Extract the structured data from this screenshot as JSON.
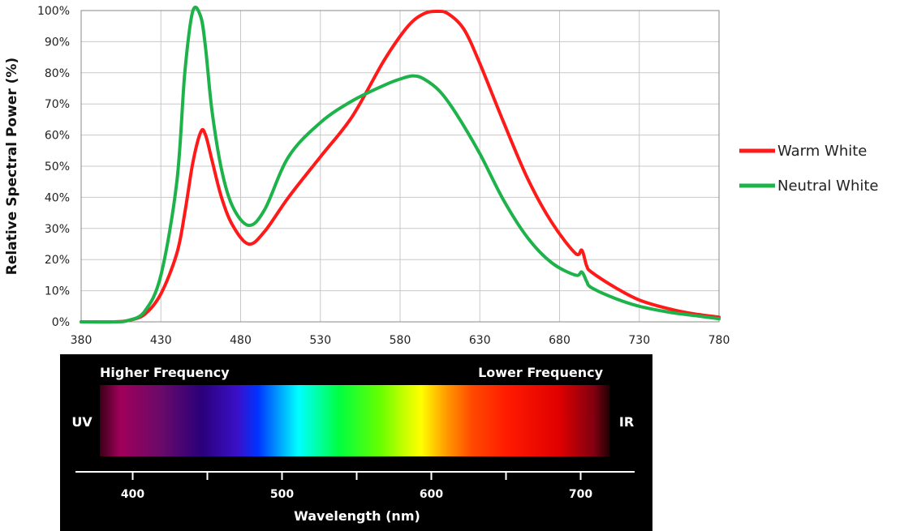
{
  "chart_data": {
    "type": "line",
    "title": "",
    "xlabel": "",
    "ylabel": "Relative Spectral Power (%)",
    "xlim": [
      380,
      780
    ],
    "ylim": [
      0,
      100
    ],
    "x_ticks": [
      "380",
      "430",
      "480",
      "530",
      "580",
      "630",
      "680",
      "730",
      "780"
    ],
    "y_ticks": [
      "0%",
      "10%",
      "20%",
      "30%",
      "40%",
      "50%",
      "60%",
      "70%",
      "80%",
      "90%",
      "100%"
    ],
    "grid": true,
    "legend_position": "right",
    "series": [
      {
        "name": "Warm White",
        "color": "#ff1a1a",
        "x": [
          380,
          400,
          410,
          420,
          430,
          440,
          445,
          450,
          455,
          458,
          462,
          468,
          475,
          485,
          495,
          510,
          530,
          550,
          570,
          585,
          595,
          603,
          610,
          620,
          630,
          645,
          660,
          675,
          690,
          694,
          697,
          700,
          715,
          730,
          750,
          765,
          780
        ],
        "y": [
          0,
          0,
          0.5,
          2.5,
          9,
          22,
          35,
          51,
          61,
          60,
          52,
          40,
          31,
          25,
          29,
          40,
          53,
          66,
          84,
          95,
          99,
          100,
          99,
          94,
          83,
          64,
          46,
          32,
          22,
          23,
          18,
          16,
          11,
          7,
          4,
          2.5,
          1.5
        ]
      },
      {
        "name": "Neutral White",
        "color": "#1db34a",
        "x": [
          380,
          400,
          410,
          420,
          430,
          440,
          445,
          450,
          455,
          458,
          462,
          468,
          475,
          485,
          495,
          510,
          530,
          550,
          570,
          580,
          588,
          595,
          605,
          615,
          630,
          645,
          660,
          675,
          690,
          694,
          697,
          700,
          715,
          730,
          750,
          765,
          780
        ],
        "y": [
          0,
          0,
          0.5,
          3.5,
          15,
          45,
          80,
          100,
          98,
          88,
          68,
          49,
          37,
          31,
          36,
          53,
          64,
          71,
          76,
          78,
          79,
          78,
          74,
          67,
          54,
          39,
          27,
          19,
          15,
          16,
          13,
          11,
          7.5,
          5,
          3,
          2,
          1
        ]
      }
    ]
  },
  "spectrum": {
    "higher_label": "Higher Frequency",
    "lower_label": "Lower Frequency",
    "uv_label": "UV",
    "ir_label": "IR",
    "axis_title": "Wavelength (nm)",
    "ticks": [
      "400",
      "500",
      "600",
      "700"
    ]
  }
}
